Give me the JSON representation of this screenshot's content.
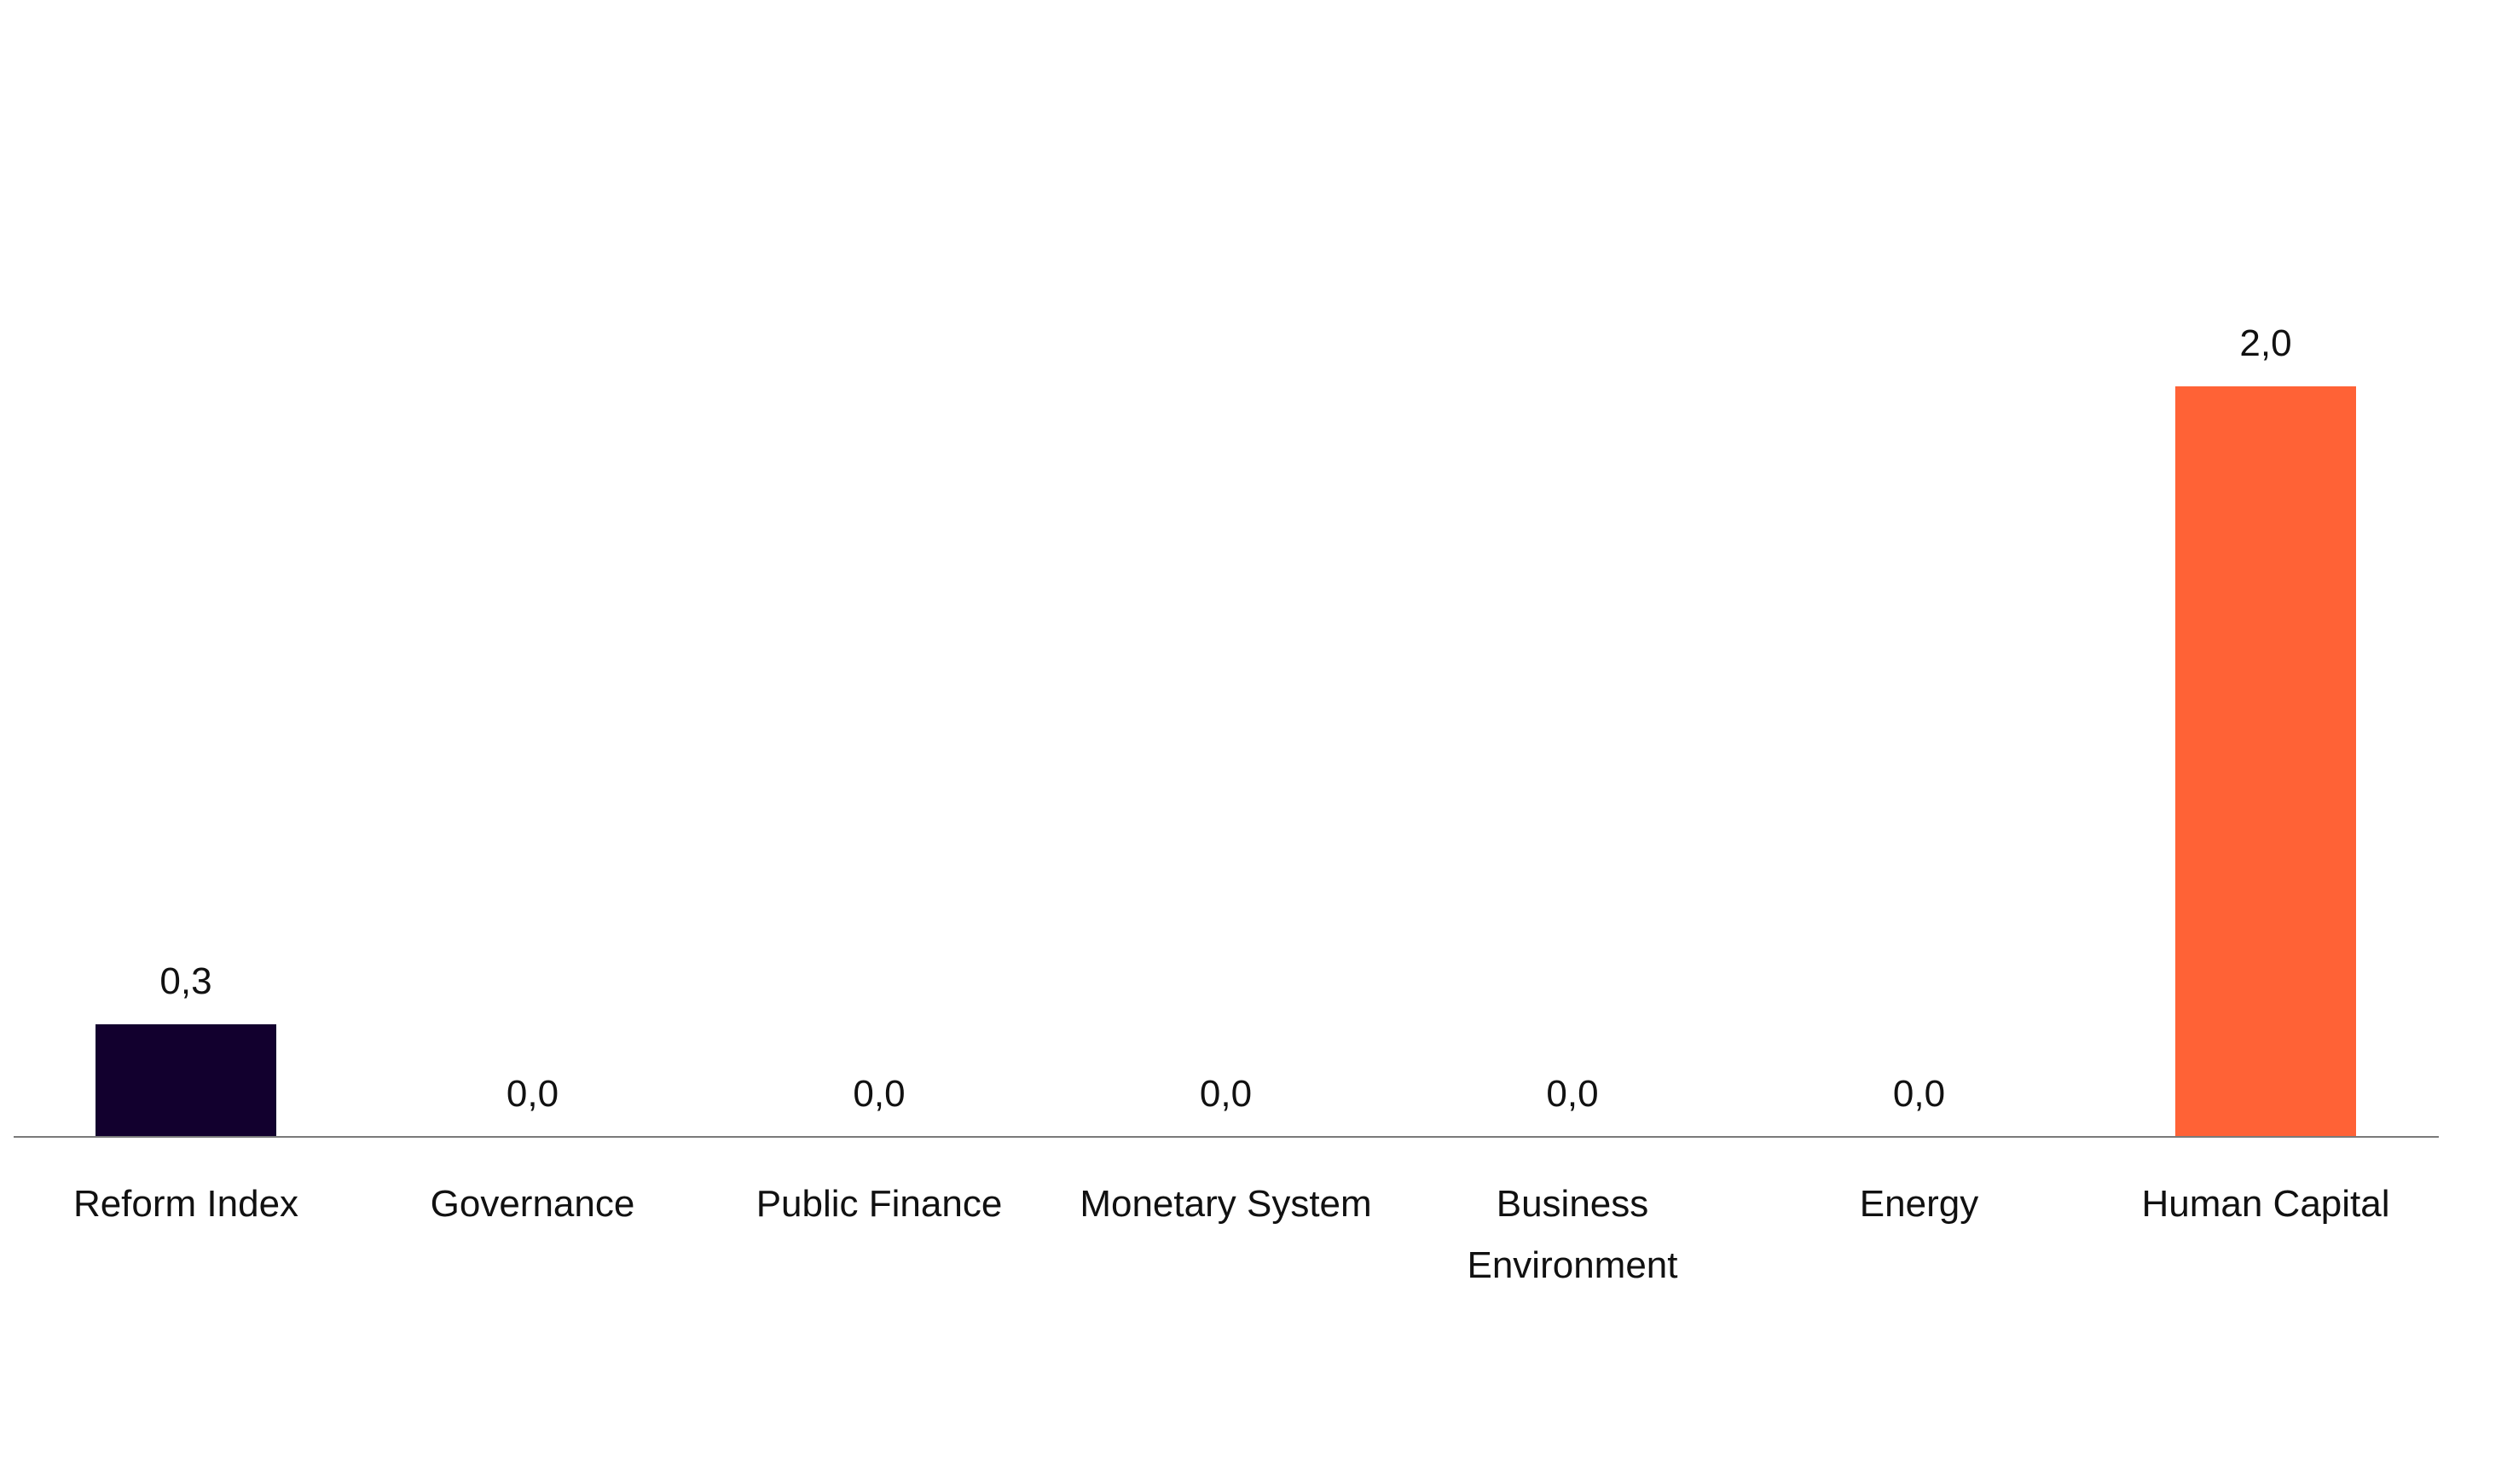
{
  "chart_data": {
    "type": "bar",
    "categories": [
      [
        "Reform Index"
      ],
      [
        "Governance"
      ],
      [
        "Public Finance"
      ],
      [
        "Monetary System"
      ],
      [
        "Business",
        "Environment"
      ],
      [
        "Energy"
      ],
      [
        "Human Capital"
      ]
    ],
    "values": [
      0.3,
      0.0,
      0.0,
      0.0,
      0.0,
      0.0,
      2.0
    ],
    "value_labels": [
      "0,3",
      "0,0",
      "0,0",
      "0,0",
      "0,0",
      "0,0",
      "2,0"
    ],
    "bar_colors": [
      "#12002e",
      "#ff6236",
      "#ff6236",
      "#ff6236",
      "#ff6236",
      "#ff6236",
      "#ff6236"
    ],
    "axis_color": "#7a7a7a",
    "title": "",
    "xlabel": "",
    "ylabel": "",
    "ylim": [
      0,
      2.4
    ],
    "grid": false,
    "legend": "none"
  }
}
